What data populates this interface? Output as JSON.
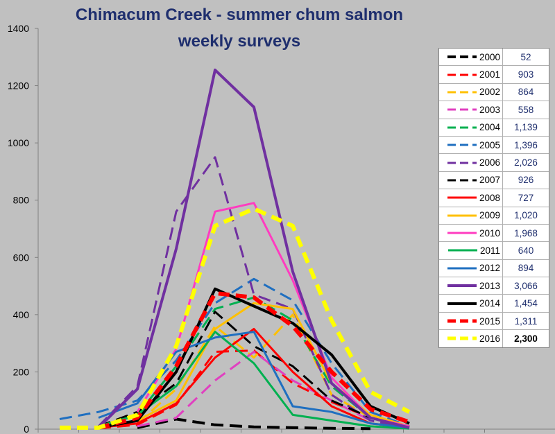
{
  "title_line1": "Chimacum Creek - summer chum salmon",
  "title_line2": "weekly surveys",
  "chart_data": {
    "type": "line",
    "title": "Chimacum Creek - summer chum salmon weekly surveys",
    "ylim": [
      0,
      1400
    ],
    "yticks": [
      "0",
      "200",
      "400",
      "600",
      "800",
      "1000",
      "1200",
      "1400"
    ],
    "x": [
      1,
      2,
      3,
      4,
      5,
      6,
      7,
      8,
      9,
      10,
      11
    ],
    "grid": false,
    "legend": "right",
    "series": [
      {
        "name": "2000",
        "total": "52",
        "color": "#000000",
        "dash": true,
        "width": 4,
        "values": [
          null,
          null,
          5,
          35,
          15,
          8,
          5,
          3,
          2,
          null,
          null
        ]
      },
      {
        "name": "2001",
        "total": "903",
        "color": "#ff0000",
        "dash": true,
        "width": 3,
        "values": [
          null,
          3,
          15,
          85,
          270,
          275,
          160,
          95,
          40,
          10,
          null
        ]
      },
      {
        "name": "2002",
        "total": "864",
        "color": "#ffc000",
        "dash": true,
        "width": 3,
        "values": [
          null,
          null,
          20,
          140,
          360,
          250,
          400,
          120,
          40,
          10,
          null
        ]
      },
      {
        "name": "2003",
        "total": "558",
        "color": "#e040c0",
        "dash": true,
        "width": 3,
        "values": [
          null,
          null,
          10,
          40,
          170,
          270,
          170,
          100,
          30,
          null,
          null
        ]
      },
      {
        "name": "2004",
        "total": "1,139",
        "color": "#00b050",
        "dash": true,
        "width": 3,
        "values": [
          null,
          5,
          50,
          220,
          420,
          460,
          380,
          150,
          40,
          5,
          null
        ]
      },
      {
        "name": "2005",
        "total": "1,396",
        "color": "#1f6fc0",
        "dash": true,
        "width": 3,
        "values": [
          35,
          60,
          100,
          240,
          440,
          525,
          450,
          230,
          60,
          10,
          null
        ]
      },
      {
        "name": "2006",
        "total": "2,026",
        "color": "#7030a0",
        "dash": true,
        "width": 3,
        "values": [
          null,
          10,
          150,
          760,
          950,
          470,
          420,
          120,
          30,
          5,
          null
        ]
      },
      {
        "name": "2007",
        "total": "926",
        "color": "#000000",
        "dash": true,
        "width": 3,
        "values": [
          null,
          10,
          60,
          160,
          410,
          290,
          220,
          100,
          40,
          10,
          null
        ]
      },
      {
        "name": "2008",
        "total": "727",
        "color": "#ff0000",
        "dash": false,
        "width": 3,
        "values": [
          null,
          5,
          20,
          90,
          250,
          350,
          200,
          80,
          20,
          5,
          null
        ]
      },
      {
        "name": "2009",
        "total": "1,020",
        "color": "#ffc000",
        "dash": false,
        "width": 3,
        "values": [
          null,
          5,
          30,
          100,
          350,
          440,
          420,
          160,
          50,
          10,
          null
        ]
      },
      {
        "name": "2010",
        "total": "1,968",
        "color": "#ff3cc0",
        "dash": false,
        "width": 3,
        "values": [
          null,
          null,
          60,
          280,
          760,
          790,
          520,
          180,
          40,
          10,
          null
        ]
      },
      {
        "name": "2011",
        "total": "640",
        "color": "#00b050",
        "dash": false,
        "width": 3,
        "values": [
          null,
          10,
          50,
          150,
          340,
          230,
          50,
          30,
          10,
          2,
          null
        ]
      },
      {
        "name": "2012",
        "total": "894",
        "color": "#1f6fc0",
        "dash": false,
        "width": 3,
        "values": [
          null,
          40,
          90,
          270,
          320,
          340,
          80,
          60,
          20,
          5,
          null
        ]
      },
      {
        "name": "2013",
        "total": "3,066",
        "color": "#7030a0",
        "dash": false,
        "width": 4,
        "values": [
          null,
          5,
          140,
          630,
          1255,
          1125,
          550,
          160,
          40,
          5,
          null
        ]
      },
      {
        "name": "2014",
        "total": "1,454",
        "color": "#000000",
        "dash": false,
        "width": 4,
        "values": [
          null,
          5,
          30,
          200,
          490,
          430,
          370,
          260,
          80,
          20,
          null
        ]
      },
      {
        "name": "2015",
        "total": "1,311",
        "color": "#ff0000",
        "dash": true,
        "width": 6,
        "values": [
          null,
          5,
          40,
          220,
          475,
          460,
          360,
          200,
          70,
          25,
          null
        ]
      },
      {
        "name": "2016",
        "total": "2,300",
        "color": "#ffff00",
        "dash": true,
        "width": 6,
        "values": [
          5,
          5,
          50,
          290,
          710,
          770,
          710,
          380,
          130,
          60,
          null
        ]
      }
    ]
  }
}
